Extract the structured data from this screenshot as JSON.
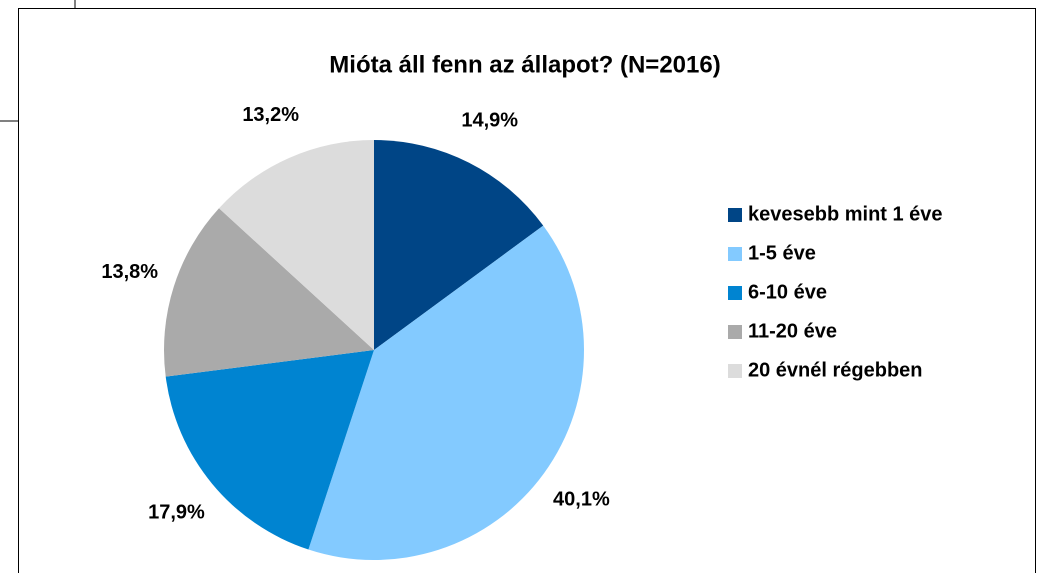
{
  "chart_data": {
    "type": "pie",
    "title": "Mióta áll fenn az állapot? (N=2016)",
    "categories": [
      "kevesebb mint 1 éve",
      "1-5 éve",
      "6-10 éve",
      "11-20 éve",
      "20 évnél régebben"
    ],
    "values": [
      14.9,
      40.1,
      17.9,
      13.8,
      13.2
    ],
    "value_labels": [
      "14,9%",
      "40,1%",
      "17,9%",
      "13,8%",
      "13,2%"
    ],
    "colors": [
      "#004586",
      "#83caff",
      "#0084d1",
      "#aaaaaa",
      "#dcdcdc"
    ],
    "legend": "right"
  }
}
